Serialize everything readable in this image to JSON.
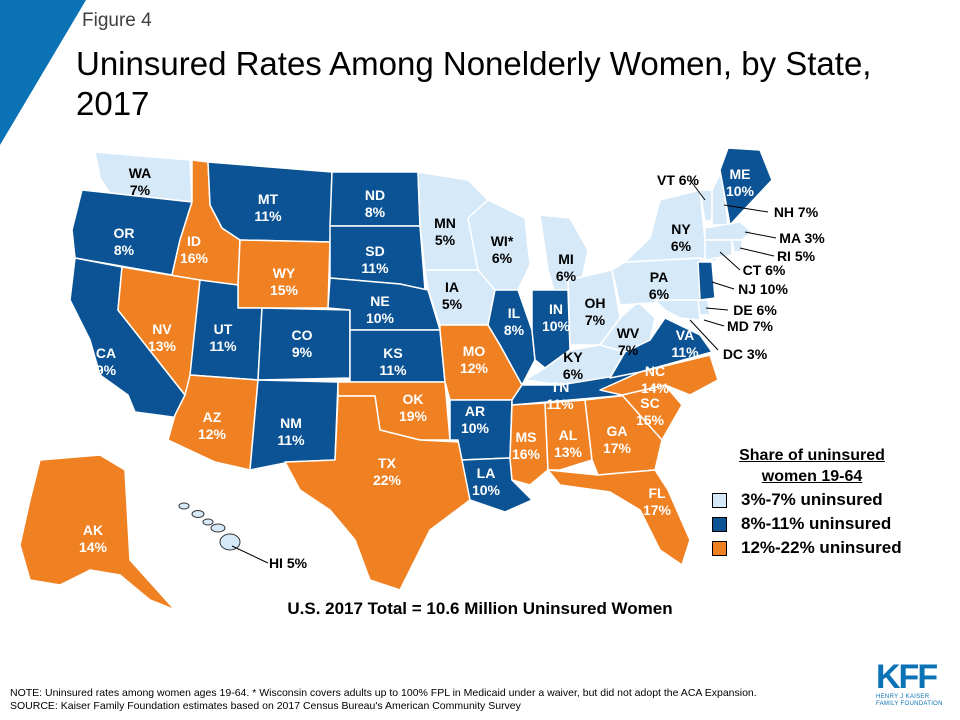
{
  "header": {
    "figure_label": "Figure 4",
    "title": "Uninsured Rates Among Nonelderly Women, by State, 2017",
    "accent_color": "#0b72b5"
  },
  "colors": {
    "low": "#d6e9f8",
    "mid": "#0b5394",
    "high": "#f08122"
  },
  "legend": {
    "title": "Share of uninsured women 19-64",
    "items": [
      {
        "label": "3%-7% uninsured",
        "category": "low"
      },
      {
        "label": "8%-11% uninsured",
        "category": "mid"
      },
      {
        "label": "12%-22% uninsured",
        "category": "high"
      }
    ]
  },
  "total": "U.S. 2017 Total = 10.6 Million Uninsured Women",
  "footnote": {
    "note": "NOTE: Uninsured rates among women ages 19-64. * Wisconsin covers adults up to 100% FPL in Medicaid under a waiver, but did not adopt the ACA Expansion.",
    "source": "SOURCE: Kaiser Family Foundation estimates based on 2017 Census Bureau's American Community Survey"
  },
  "logo": {
    "mark": "KFF",
    "subtitle": [
      "HENRY J KAISER",
      "FAMILY FOUNDATION"
    ]
  },
  "states": [
    {
      "abbr": "WA",
      "value": "7%",
      "category": "low"
    },
    {
      "abbr": "OR",
      "value": "8%",
      "category": "mid"
    },
    {
      "abbr": "CA",
      "value": "9%",
      "category": "mid"
    },
    {
      "abbr": "ID",
      "value": "16%",
      "category": "high"
    },
    {
      "abbr": "NV",
      "value": "13%",
      "category": "high"
    },
    {
      "abbr": "MT",
      "value": "11%",
      "category": "mid"
    },
    {
      "abbr": "WY",
      "value": "15%",
      "category": "high"
    },
    {
      "abbr": "UT",
      "value": "11%",
      "category": "mid"
    },
    {
      "abbr": "AZ",
      "value": "12%",
      "category": "high"
    },
    {
      "abbr": "CO",
      "value": "9%",
      "category": "mid"
    },
    {
      "abbr": "NM",
      "value": "11%",
      "category": "mid"
    },
    {
      "abbr": "ND",
      "value": "8%",
      "category": "mid"
    },
    {
      "abbr": "SD",
      "value": "11%",
      "category": "mid"
    },
    {
      "abbr": "NE",
      "value": "10%",
      "category": "mid"
    },
    {
      "abbr": "KS",
      "value": "11%",
      "category": "mid"
    },
    {
      "abbr": "OK",
      "value": "19%",
      "category": "high"
    },
    {
      "abbr": "TX",
      "value": "22%",
      "category": "high"
    },
    {
      "abbr": "MN",
      "value": "5%",
      "category": "low"
    },
    {
      "abbr": "IA",
      "value": "5%",
      "category": "low"
    },
    {
      "abbr": "MO",
      "value": "12%",
      "category": "high"
    },
    {
      "abbr": "AR",
      "value": "10%",
      "category": "mid"
    },
    {
      "abbr": "LA",
      "value": "10%",
      "category": "mid"
    },
    {
      "abbr": "WI*",
      "value": "6%",
      "category": "low"
    },
    {
      "abbr": "IL",
      "value": "8%",
      "category": "mid"
    },
    {
      "abbr": "MI",
      "value": "6%",
      "category": "low"
    },
    {
      "abbr": "IN",
      "value": "10%",
      "category": "mid"
    },
    {
      "abbr": "OH",
      "value": "7%",
      "category": "low"
    },
    {
      "abbr": "KY",
      "value": "6%",
      "category": "low"
    },
    {
      "abbr": "TN",
      "value": "11%",
      "category": "mid"
    },
    {
      "abbr": "MS",
      "value": "16%",
      "category": "high"
    },
    {
      "abbr": "AL",
      "value": "13%",
      "category": "high"
    },
    {
      "abbr": "GA",
      "value": "17%",
      "category": "high"
    },
    {
      "abbr": "FL",
      "value": "17%",
      "category": "high"
    },
    {
      "abbr": "SC",
      "value": "15%",
      "category": "high"
    },
    {
      "abbr": "NC",
      "value": "14%",
      "category": "high"
    },
    {
      "abbr": "VA",
      "value": "11%",
      "category": "mid"
    },
    {
      "abbr": "WV",
      "value": "7%",
      "category": "low"
    },
    {
      "abbr": "PA",
      "value": "6%",
      "category": "low"
    },
    {
      "abbr": "NY",
      "value": "6%",
      "category": "low"
    },
    {
      "abbr": "VT",
      "value": "6%",
      "category": "low"
    },
    {
      "abbr": "NH",
      "value": "7%",
      "category": "low"
    },
    {
      "abbr": "ME",
      "value": "10%",
      "category": "mid"
    },
    {
      "abbr": "MA",
      "value": "3%",
      "category": "low"
    },
    {
      "abbr": "RI",
      "value": "5%",
      "category": "low"
    },
    {
      "abbr": "CT",
      "value": "6%",
      "category": "low"
    },
    {
      "abbr": "NJ",
      "value": "10%",
      "category": "mid"
    },
    {
      "abbr": "DE",
      "value": "6%",
      "category": "low"
    },
    {
      "abbr": "MD",
      "value": "7%",
      "category": "low"
    },
    {
      "abbr": "DC",
      "value": "3%",
      "category": "low"
    },
    {
      "abbr": "AK",
      "value": "14%",
      "category": "high"
    },
    {
      "abbr": "HI",
      "value": "5%",
      "category": "low"
    }
  ]
}
